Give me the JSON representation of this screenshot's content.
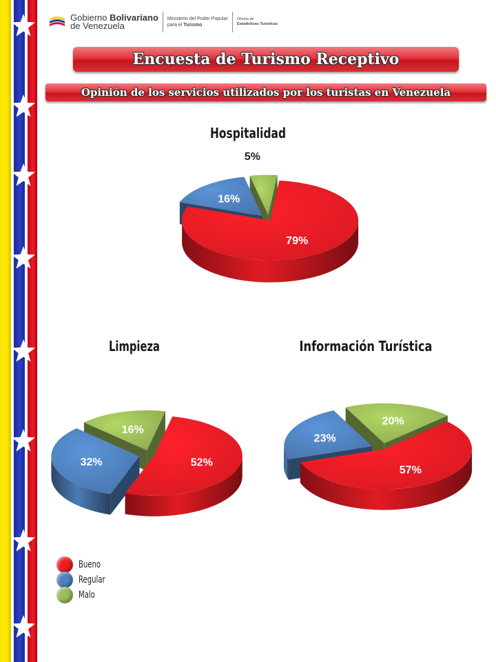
{
  "header": {
    "logo_line1_regular": "Gobierno ",
    "logo_line1_bold": "Bolivariano",
    "logo_line2": "de Venezuela",
    "ministry_line1": "Ministerio del Poder Popular",
    "ministry_line2_prefix": "para el ",
    "ministry_line2_bold": "Turismo",
    "office_line1": "Oficina de",
    "office_line2": "Estadísticas Turísticas"
  },
  "title": "Encuesta de Turismo Receptivo",
  "subtitle": "Opinión de los servicios utilizados por los turistas en Venezuela",
  "colors": {
    "bueno": "#ee1c25",
    "regular": "#4f81bd",
    "malo": "#9bbb59"
  },
  "legend": [
    {
      "label": "Bueno",
      "color": "#ee1c25"
    },
    {
      "label": "Regular",
      "color": "#4f81bd"
    },
    {
      "label": "Malo",
      "color": "#9bbb59"
    }
  ],
  "chart_data": [
    {
      "type": "pie",
      "title": "Hospitalidad",
      "categories": [
        "Bueno",
        "Regular",
        "Malo"
      ],
      "values": [
        79,
        16,
        5
      ],
      "labels": [
        "79%",
        "16%",
        "5%"
      ]
    },
    {
      "type": "pie",
      "title": "Limpieza",
      "categories": [
        "Bueno",
        "Regular",
        "Malo"
      ],
      "values": [
        52,
        32,
        16
      ],
      "labels": [
        "52%",
        "32%",
        "16%"
      ]
    },
    {
      "type": "pie",
      "title": "Información Turística",
      "categories": [
        "Bueno",
        "Regular",
        "Malo"
      ],
      "values": [
        57,
        23,
        20
      ],
      "labels": [
        "57%",
        "23%",
        "20%"
      ]
    }
  ]
}
